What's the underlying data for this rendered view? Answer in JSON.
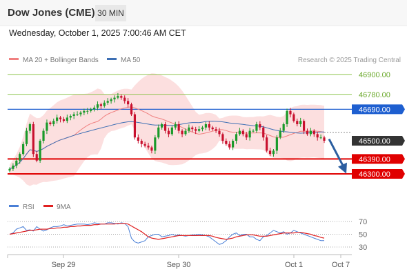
{
  "header": {
    "title": "Dow Jones (CME)",
    "timeframe": "30 MIN",
    "timestamp": "Wednesday, October 1, 2025 7:00:46 AM CET"
  },
  "legend": {
    "ma20_label": "MA 20 + Bollinger Bands",
    "ma50_label": "MA 50",
    "credit": "Research © 2025 Trading Central"
  },
  "rsi_legend": {
    "rsi_label": "RSI",
    "ma_label": "9MA"
  },
  "colors": {
    "candle_up": "#1a9a2a",
    "candle_down": "#c8102e",
    "ma20": "#f08080",
    "ma50": "#3d6fb4",
    "bollinger_fill": "#fbd9d9",
    "resistance_green": "#8bc34a",
    "pivot_blue": "#1e5fd0",
    "support_red": "#e00000",
    "current_price": "#333333",
    "arrow": "#2b5ea0",
    "rsi_line": "#4a7fd6",
    "rsi_ma_line": "#e02020"
  },
  "chart_data": [
    {
      "type": "candlestick",
      "title": "Dow Jones (CME)",
      "interval": "30 MIN",
      "x_ticks": [
        "Sep 29",
        "Sep 30",
        "Oct 1",
        "Oct 7"
      ],
      "y_ticks": [
        46300,
        46390,
        46500,
        46690,
        46780,
        46900
      ],
      "levels": [
        {
          "value": 46900.0,
          "label": "46900.00",
          "kind": "resistance",
          "color": "#6aa82a"
        },
        {
          "value": 46780.0,
          "label": "46780.00",
          "kind": "resistance",
          "color": "#6aa82a"
        },
        {
          "value": 46690.0,
          "label": "46690.00",
          "kind": "pivot",
          "color": "#1e5fd0"
        },
        {
          "value": 46500.0,
          "label": "46500.00",
          "kind": "last",
          "color": "#333333"
        },
        {
          "value": 46390.0,
          "label": "46390.00",
          "kind": "support",
          "color": "#e00000"
        },
        {
          "value": 46300.0,
          "label": "46300.00",
          "kind": "support",
          "color": "#e00000"
        }
      ],
      "overlays": [
        "MA 20 + Bollinger Bands",
        "MA 50"
      ],
      "forecast_arrow": {
        "from": 46510,
        "to": 46310,
        "direction": "down"
      },
      "closes": [
        46330,
        46350,
        46380,
        46420,
        46480,
        46560,
        46600,
        46420,
        46380,
        46500,
        46560,
        46610,
        46600,
        46620,
        46640,
        46630,
        46620,
        46640,
        46650,
        46660,
        46660,
        46670,
        46680,
        46680,
        46690,
        46700,
        46720,
        46710,
        46730,
        46740,
        46750,
        46760,
        46770,
        46760,
        46740,
        46720,
        46660,
        46520,
        46500,
        46480,
        46470,
        46460,
        46440,
        46520,
        46580,
        46600,
        46560,
        46540,
        46580,
        46600,
        46560,
        46540,
        46560,
        46580,
        46570,
        46560,
        46570,
        46580,
        46600,
        46580,
        46570,
        46560,
        46540,
        46500,
        46480,
        46460,
        46500,
        46540,
        46560,
        46540,
        46520,
        46560,
        46560,
        46600,
        46580,
        46520,
        46440,
        46420,
        46440,
        46520,
        46560,
        46600,
        46680,
        46660,
        46620,
        46600,
        46620,
        46560,
        46540,
        46560,
        46540,
        46520,
        46520,
        46500
      ]
    },
    {
      "type": "line",
      "title": "RSI",
      "series": [
        {
          "name": "RSI"
        },
        {
          "name": "9MA"
        }
      ],
      "y_ticks": [
        30,
        50,
        70
      ],
      "ylim": [
        20,
        80
      ],
      "rsi": [
        50,
        52,
        58,
        60,
        62,
        56,
        57,
        55,
        62,
        58,
        55,
        57,
        60,
        62,
        62,
        63,
        65,
        63,
        64,
        65,
        66,
        66,
        66,
        65,
        66,
        68,
        67,
        66,
        66,
        68,
        68,
        67,
        66,
        68,
        67,
        62,
        44,
        38,
        36,
        38,
        40,
        46,
        48,
        50,
        50,
        46,
        47,
        48,
        50,
        48,
        49,
        48,
        47,
        48,
        49,
        49,
        50,
        49,
        48,
        46,
        42,
        38,
        34,
        36,
        40,
        46,
        50,
        52,
        48,
        50,
        50,
        46,
        46,
        42,
        40,
        46,
        48,
        52,
        56,
        54,
        52,
        54,
        50,
        52,
        56,
        54,
        52,
        50,
        48,
        46,
        44,
        42,
        40,
        40
      ],
      "rsi_ma": [
        50,
        51,
        52,
        53,
        54,
        55,
        56,
        56,
        57,
        58,
        58,
        58,
        59,
        59,
        60,
        60,
        61,
        61,
        62,
        62,
        63,
        63,
        64,
        64,
        64,
        65,
        65,
        66,
        66,
        66,
        66,
        66,
        67,
        67,
        67,
        66,
        63,
        60,
        57,
        54,
        50,
        46,
        44,
        43,
        42,
        43,
        44,
        45,
        46,
        47,
        48,
        48,
        48,
        48,
        48,
        48,
        48,
        48,
        48,
        48,
        47,
        45,
        44,
        43,
        42,
        43,
        44,
        46,
        47,
        48,
        49,
        49,
        49,
        48,
        47,
        47,
        47,
        48,
        49,
        50,
        51,
        52,
        52,
        52,
        52,
        53,
        53,
        52,
        51,
        50,
        48,
        47,
        45,
        44
      ]
    }
  ]
}
